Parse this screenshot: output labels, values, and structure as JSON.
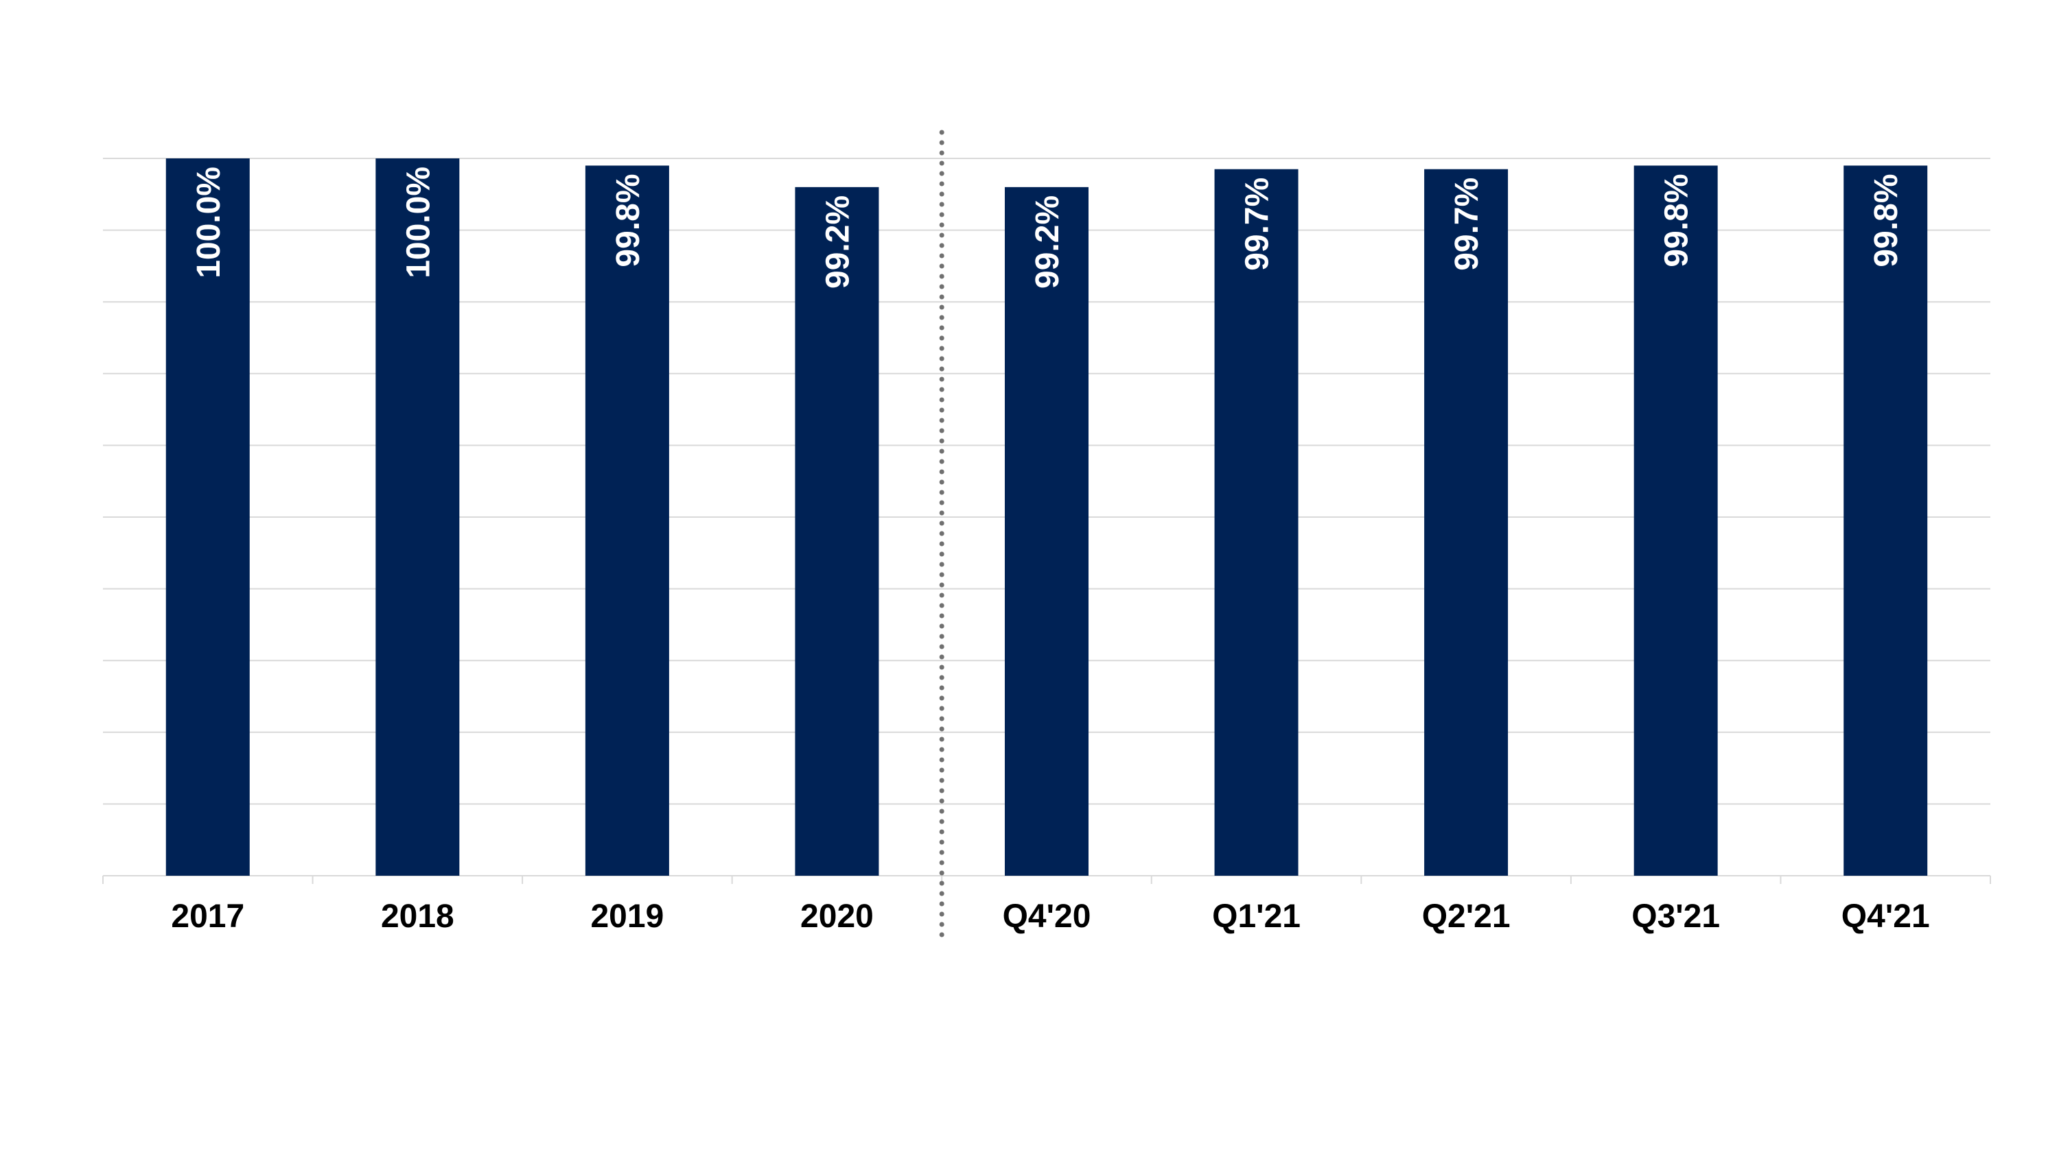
{
  "chart_data": {
    "type": "bar",
    "title": "",
    "xlabel": "",
    "ylabel": "",
    "categories": [
      "2017",
      "2018",
      "2019",
      "2020",
      "Q4'20",
      "Q1'21",
      "Q2'21",
      "Q3'21",
      "Q4'21"
    ],
    "values": [
      100.0,
      100.0,
      99.8,
      99.2,
      99.2,
      99.7,
      99.7,
      99.8,
      99.8
    ],
    "value_labels": [
      "100.0%",
      "100.0%",
      "99.8%",
      "99.2%",
      "99.2%",
      "99.7%",
      "99.7%",
      "99.8%",
      "99.8%"
    ],
    "ylim": [
      80,
      100
    ],
    "gridlines": true,
    "legend": "none",
    "separator_after_category": "2020",
    "colors": {
      "bar": "#002255",
      "value_label": "#ffffff",
      "category_label": "#000000",
      "gridline": "#d9d9d9",
      "separator": "#707070"
    }
  }
}
